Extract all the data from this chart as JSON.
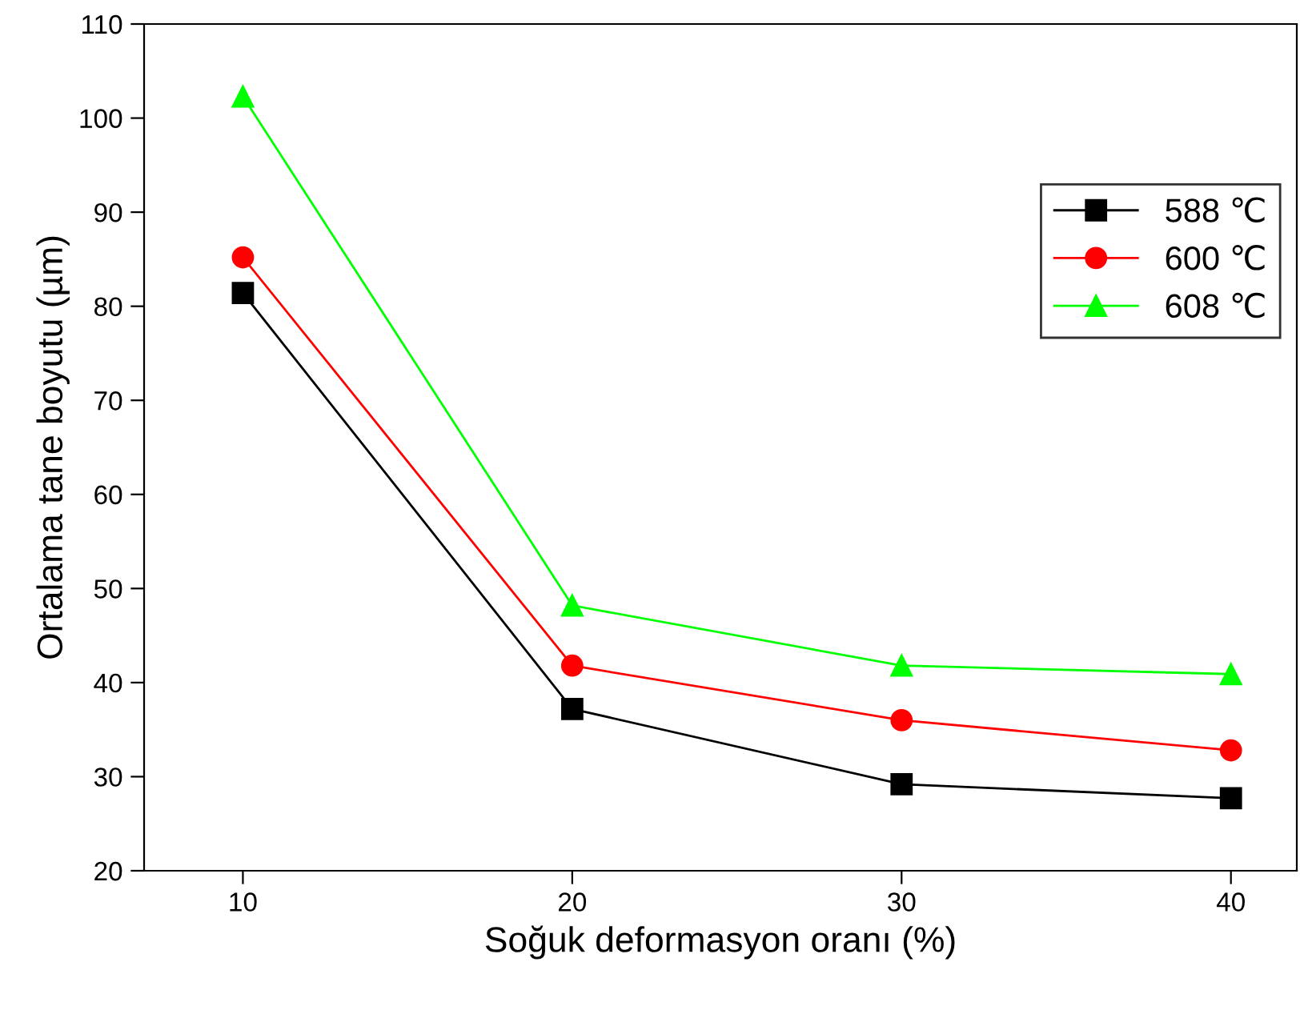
{
  "chart_data": {
    "type": "line",
    "xlabel": "Soğuk deformasyon oranı (%)",
    "ylabel": "Ortalama tane boyutu (µm)",
    "x": [
      10,
      20,
      30,
      40
    ],
    "series": [
      {
        "name": "588 ℃",
        "color": "#000000",
        "marker": "square",
        "values": [
          81.4,
          37.2,
          29.2,
          27.7
        ]
      },
      {
        "name": "600 ℃",
        "color": "#ff0000",
        "marker": "circle",
        "values": [
          85.2,
          41.8,
          36.0,
          32.8
        ]
      },
      {
        "name": "608 ℃",
        "color": "#00ff00",
        "marker": "triangle",
        "values": [
          102.3,
          48.2,
          41.8,
          40.9
        ]
      }
    ],
    "xlim": [
      7,
      42
    ],
    "xticks": [
      10,
      20,
      30,
      40
    ],
    "ylim": [
      20,
      110
    ],
    "yticks": [
      20,
      30,
      40,
      50,
      60,
      70,
      80,
      90,
      100,
      110
    ],
    "grid": false,
    "legend": "right",
    "line_style": "solid"
  }
}
